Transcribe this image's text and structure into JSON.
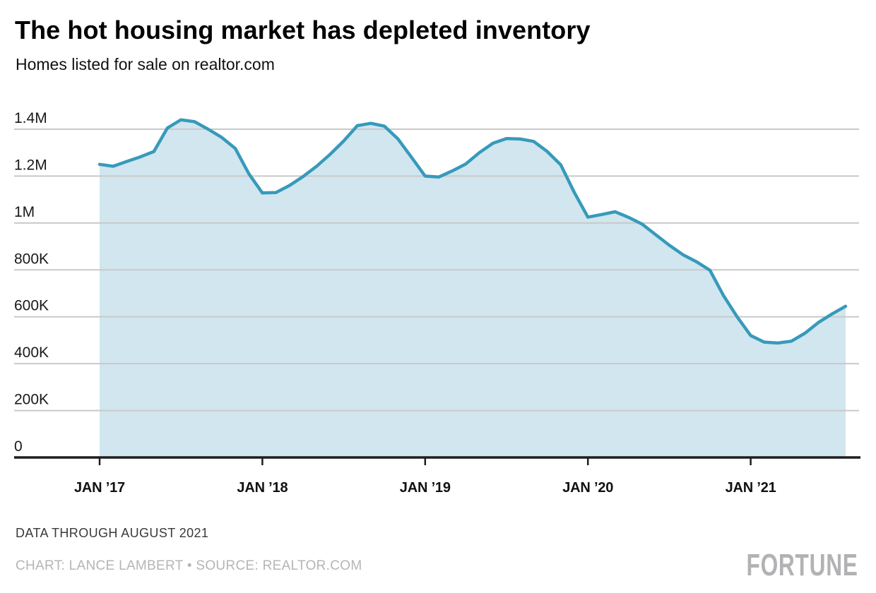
{
  "header": {
    "title": "The hot housing market has depleted inventory",
    "subtitle": "Homes listed for sale on realtor.com"
  },
  "footer": {
    "note": "DATA THROUGH AUGUST 2021",
    "credit": "CHART: LANCE LAMBERT • SOURCE: REALTOR.COM",
    "brand": "FORTUNE"
  },
  "chart_data": {
    "type": "area",
    "title": "The hot housing market has depleted inventory",
    "subtitle": "Homes listed for sale on realtor.com",
    "x_unit": "month",
    "x_start": "2017-01",
    "x_end": "2021-08",
    "x_tick_labels": [
      "JAN ’17",
      "JAN ’18",
      "JAN ’19",
      "JAN ’20",
      "JAN ’21"
    ],
    "x_tick_month_indices": [
      0,
      12,
      24,
      36,
      48
    ],
    "y_tick_labels": [
      "0",
      "200K",
      "400K",
      "600K",
      "800K",
      "1M",
      "1.2M",
      "1.4M"
    ],
    "y_tick_values": [
      0,
      200000,
      400000,
      600000,
      800000,
      1000000,
      1200000,
      1400000
    ],
    "ylim": [
      0,
      1450000
    ],
    "grid": true,
    "legend": false,
    "series": [
      {
        "name": "Homes listed for sale on realtor.com",
        "months": [
          "2017-01",
          "2017-02",
          "2017-03",
          "2017-04",
          "2017-05",
          "2017-06",
          "2017-07",
          "2017-08",
          "2017-09",
          "2017-10",
          "2017-11",
          "2017-12",
          "2018-01",
          "2018-02",
          "2018-03",
          "2018-04",
          "2018-05",
          "2018-06",
          "2018-07",
          "2018-08",
          "2018-09",
          "2018-10",
          "2018-11",
          "2018-12",
          "2019-01",
          "2019-02",
          "2019-03",
          "2019-04",
          "2019-05",
          "2019-06",
          "2019-07",
          "2019-08",
          "2019-09",
          "2019-10",
          "2019-11",
          "2019-12",
          "2020-01",
          "2020-02",
          "2020-03",
          "2020-04",
          "2020-05",
          "2020-06",
          "2020-07",
          "2020-08",
          "2020-09",
          "2020-10",
          "2020-11",
          "2020-12",
          "2021-01",
          "2021-02",
          "2021-03",
          "2021-04",
          "2021-05",
          "2021-06",
          "2021-07",
          "2021-08"
        ],
        "values": [
          1250000,
          1242000,
          1262000,
          1282000,
          1305000,
          1405000,
          1440000,
          1432000,
          1400000,
          1365000,
          1318000,
          1210000,
          1128000,
          1130000,
          1160000,
          1198000,
          1242000,
          1293000,
          1350000,
          1415000,
          1425000,
          1413000,
          1358000,
          1280000,
          1200000,
          1196000,
          1222000,
          1252000,
          1300000,
          1340000,
          1360000,
          1358000,
          1348000,
          1305000,
          1248000,
          1130000,
          1025000,
          1036000,
          1048000,
          1024000,
          995000,
          950000,
          905000,
          865000,
          835000,
          798000,
          690000,
          600000,
          520000,
          492000,
          488000,
          496000,
          530000,
          576000,
          612000,
          645000
        ]
      }
    ],
    "colors": {
      "line": "#379ABA",
      "fill": "#D1E6EF",
      "grid": "#C9C9C9",
      "axis": "#1E1E1E",
      "y_label": "#191919",
      "x_label": "#111111"
    }
  }
}
